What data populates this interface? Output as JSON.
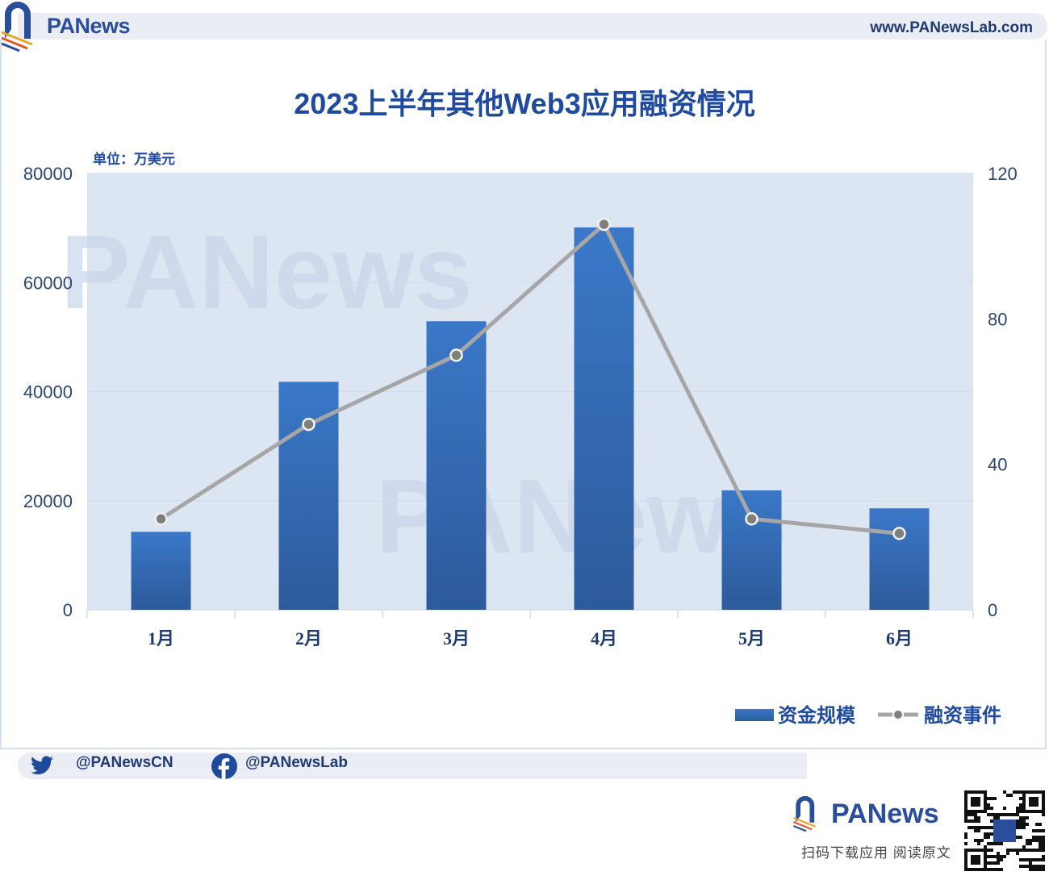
{
  "header": {
    "brand": "PANews",
    "url": "www.PANewsLab.com"
  },
  "footer": {
    "twitter": "@PANewsCN",
    "facebook": "@PANewsLab",
    "brand": "PANews",
    "caption": "扫码下载应用  阅读原文"
  },
  "watermark": "PANews",
  "colors": {
    "bar": "#3a78c8",
    "bar_dark": "#2d5a9a",
    "line": "#a6a6a6",
    "marker": "#7f7f7f",
    "text_blue": "#1e4aa0",
    "plot_bg": "#dce6f2"
  },
  "chart_data": {
    "type": "bar+line",
    "title": "2023上半年其他Web3应用融资情况",
    "unit_label": "单位：万美元",
    "categories": [
      "1月",
      "2月",
      "3月",
      "4月",
      "5月",
      "6月"
    ],
    "series": [
      {
        "name": "资金规模",
        "type": "bar",
        "axis": "left",
        "values": [
          14300,
          41800,
          52900,
          70100,
          21900,
          18600
        ]
      },
      {
        "name": "融资事件",
        "type": "line",
        "axis": "right",
        "values": [
          25,
          51,
          70,
          106,
          25,
          21
        ]
      }
    ],
    "y_left": {
      "min": 0,
      "max": 80000,
      "ticks": [
        "0",
        "20000",
        "40000",
        "60000",
        "80000"
      ]
    },
    "y_right": {
      "min": 0,
      "max": 120,
      "ticks": [
        "0",
        "40",
        "80",
        "120"
      ]
    },
    "legend": {
      "position": "bottom-right",
      "items": [
        "资金规模",
        "融资事件"
      ]
    },
    "grid": true
  }
}
